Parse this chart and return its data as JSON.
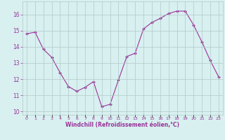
{
  "x": [
    0,
    1,
    2,
    3,
    4,
    5,
    6,
    7,
    8,
    9,
    10,
    11,
    12,
    13,
    14,
    15,
    16,
    17,
    18,
    19,
    20,
    21,
    22,
    23
  ],
  "y": [
    14.8,
    14.9,
    13.85,
    13.35,
    12.4,
    11.55,
    11.25,
    11.5,
    11.85,
    10.3,
    10.45,
    11.95,
    13.4,
    13.6,
    15.1,
    15.5,
    15.75,
    16.05,
    16.2,
    16.2,
    15.35,
    14.3,
    13.15,
    12.15
  ],
  "line_color": "#993399",
  "marker_color": "#993399",
  "bg_color": "#d8f0f0",
  "grid_color": "#b0c8c8",
  "xlabel": "Windchill (Refroidissement éolien,°C)",
  "xlabel_color": "#993399",
  "ylim": [
    9.8,
    16.8
  ],
  "yticks": [
    10,
    11,
    12,
    13,
    14,
    15,
    16
  ],
  "xlim": [
    -0.5,
    23.5
  ],
  "figsize": [
    3.2,
    2.0
  ],
  "dpi": 100
}
